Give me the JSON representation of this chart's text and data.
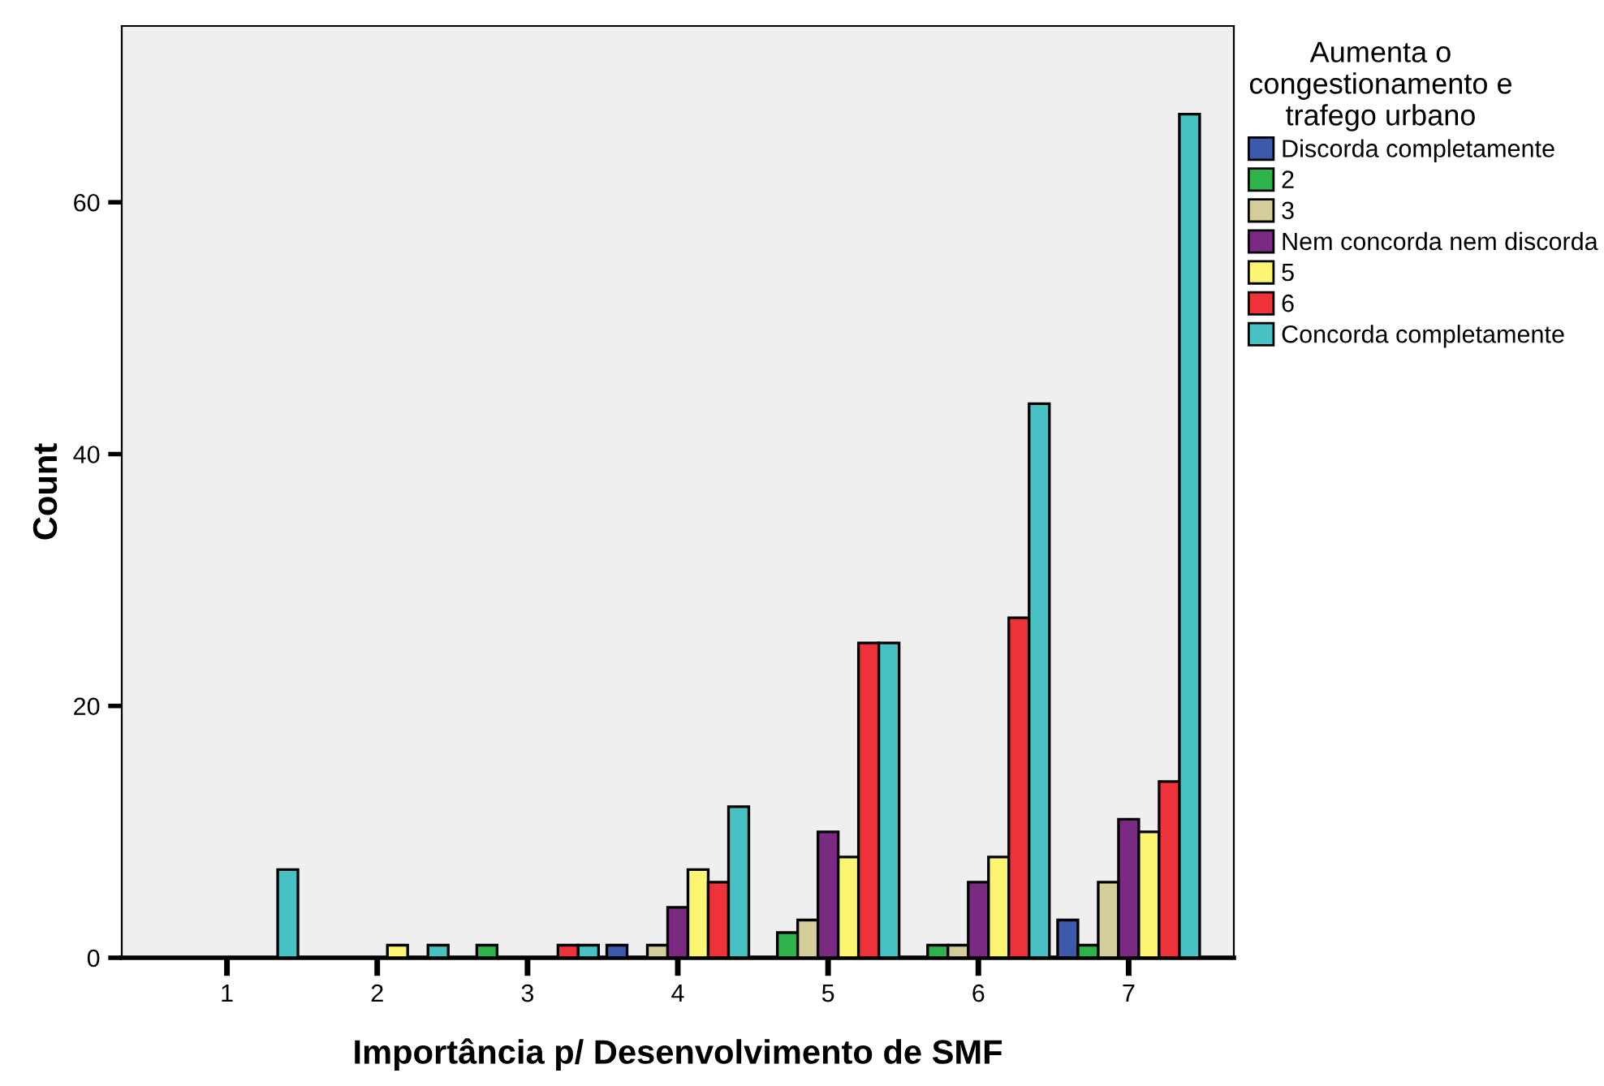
{
  "chart_data": {
    "type": "bar",
    "xlabel": "Importância p/ Desenvolvimento de SMF",
    "ylabel": "Count",
    "legend_title": "Aumenta o\ncongestionamento e\ntrafego urbano",
    "legend": "right",
    "grid": false,
    "categories": [
      "1",
      "2",
      "3",
      "4",
      "5",
      "6",
      "7"
    ],
    "ylim": [
      0,
      74
    ],
    "yticks": [
      0,
      20,
      40,
      60
    ],
    "series": [
      {
        "name": "Discorda completamente",
        "color": "#3d59ab",
        "values": [
          null,
          null,
          null,
          1,
          null,
          null,
          3
        ]
      },
      {
        "name": "2",
        "color": "#2db34a",
        "values": [
          null,
          null,
          1,
          null,
          2,
          1,
          1
        ]
      },
      {
        "name": "3",
        "color": "#d4cc99",
        "values": [
          null,
          null,
          null,
          1,
          3,
          1,
          6
        ]
      },
      {
        "name": "Nem concorda nem discorda",
        "color": "#7a2a82",
        "values": [
          null,
          null,
          null,
          4,
          10,
          6,
          11
        ]
      },
      {
        "name": "5",
        "color": "#fbf571",
        "values": [
          null,
          1,
          null,
          7,
          8,
          8,
          10
        ]
      },
      {
        "name": "6",
        "color": "#ee3239",
        "values": [
          null,
          null,
          1,
          6,
          25,
          27,
          14
        ]
      },
      {
        "name": "Concorda completamente",
        "color": "#48c1c5",
        "values": [
          7,
          1,
          1,
          12,
          25,
          44,
          67
        ]
      }
    ]
  }
}
